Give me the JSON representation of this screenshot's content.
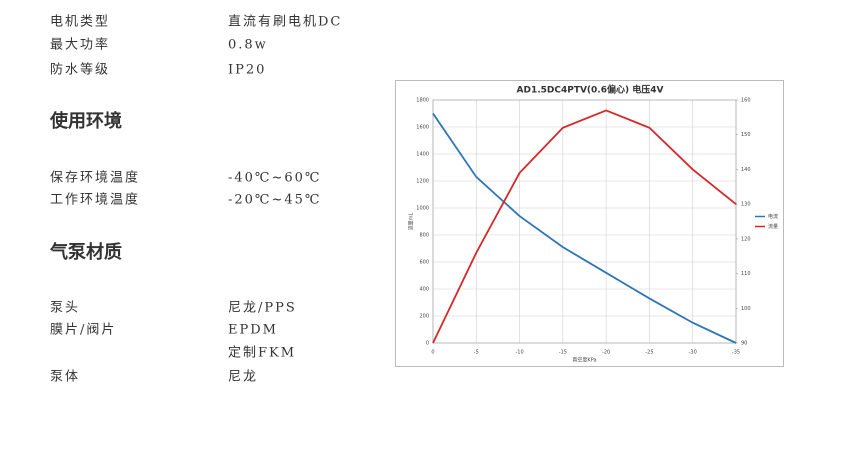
{
  "specs": {
    "sections": [
      {
        "rows": [
          {
            "label": "电机类型",
            "values": [
              "直流有刷电机DC"
            ]
          },
          {
            "label": "最大功率",
            "values": [
              "0.8w"
            ]
          },
          {
            "label": "防水等级",
            "values": [
              "IP20"
            ]
          }
        ]
      },
      {
        "heading": "使用环境",
        "rows": [
          {
            "label": "保存环境温度",
            "values": [
              "-40℃~60℃"
            ]
          },
          {
            "label": "工作环境温度",
            "values": [
              "-20℃~45℃"
            ]
          }
        ]
      },
      {
        "heading": "气泵材质",
        "rows": [
          {
            "label": "泵头",
            "values": [
              "尼龙/PPS"
            ]
          },
          {
            "label": "膜片/阀片",
            "values": [
              "EPDM",
              "定制FKM"
            ]
          },
          {
            "label": "泵体",
            "values": [
              "尼龙"
            ]
          }
        ]
      }
    ]
  },
  "chart_data": {
    "type": "line",
    "title": "AD1.5DC4PTV(0.6偏心)   电压4V",
    "x_label": "真空度KPa",
    "y_label": "流量mL",
    "x": [
      0,
      -5,
      -10,
      -15,
      -20,
      -25,
      -30,
      -35
    ],
    "xlim": [
      0,
      -35
    ],
    "xticks": [
      0,
      -5,
      -10,
      -15,
      -20,
      -25,
      -30,
      -35
    ],
    "ylim": [
      0,
      1800
    ],
    "yticks": [
      0,
      200,
      400,
      600,
      800,
      1000,
      1200,
      1400,
      1600,
      1800
    ],
    "y2lim": [
      90,
      160
    ],
    "y2ticks": [
      90,
      100,
      110,
      120,
      130,
      140,
      150,
      160
    ],
    "grid": true,
    "legend": "right",
    "series": [
      {
        "name": "电流",
        "color": "#2e75b6",
        "values": [
          1700,
          1230,
          940,
          710,
          520,
          330,
          150,
          0
        ]
      },
      {
        "name": "流量",
        "color": "#d62728",
        "axis": "y2",
        "values": [
          90,
          116,
          139,
          152,
          157,
          152,
          140,
          130
        ]
      }
    ]
  }
}
